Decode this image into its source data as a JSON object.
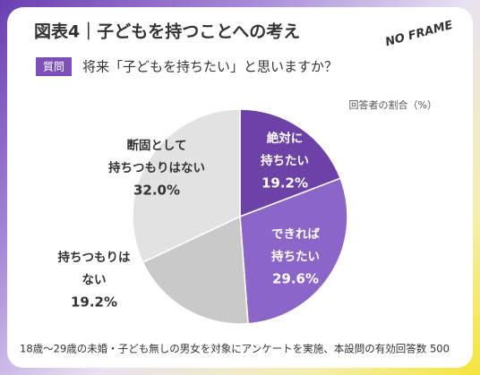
{
  "chart_data": {
    "type": "pie",
    "title": "図表4｜子どもを持つことへの考え",
    "logo": "NO FRAME",
    "question_badge": "質問",
    "question": "将来「子どもを持ちたい」と思いますか？",
    "unit_note": "回答者の割合（%）",
    "categories": [
      [
        "絶対に",
        "持ちたい"
      ],
      [
        "できれば",
        "持ちたい"
      ],
      [
        "持ちつもりは",
        "ない"
      ],
      [
        "断固として",
        "持ちつもりはない"
      ]
    ],
    "values": [
      19.2,
      29.6,
      19.2,
      32.0
    ],
    "value_labels": [
      "19.2%",
      "29.6%",
      "19.2%",
      "32.0%"
    ],
    "colors": [
      "#6d42a6",
      "#8b66c8",
      "#c9c9c9",
      "#e2e2e2"
    ],
    "footnote": "18歳〜29歳の未婚・子ども無しの男女を対象にアンケートを実施、本設問の有効回答数 500"
  }
}
